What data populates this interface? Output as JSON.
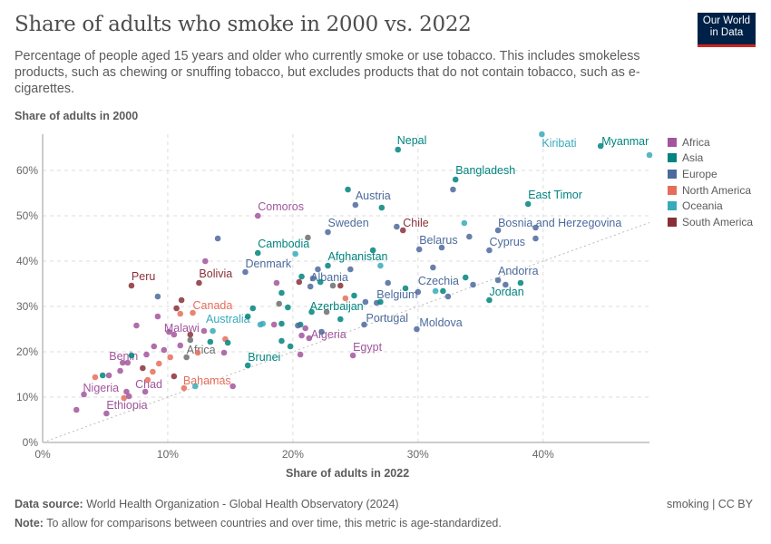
{
  "header": {
    "title": "Share of adults who smoke in 2000 vs. 2022",
    "subtitle": "Percentage of people aged 15 years and older who currently smoke or use tobacco. This includes smokeless products, such as chewing or snuffing tobacco, but excludes products that do not contain tobacco, such as e-cigarettes.",
    "logo": "Our World in Data"
  },
  "footer": {
    "source_label": "Data source:",
    "source": "World Health Organization - Global Health Observatory (2024)",
    "note_label": "Note:",
    "note": "To allow for comparisons between countries and over time, this metric is age-standardized.",
    "license": "smoking | CC BY"
  },
  "chart_data": {
    "type": "scatter",
    "title": "Share of adults who smoke in 2000 vs. 2022",
    "xlabel": "Share of adults in 2022",
    "ylabel": "Share of adults in 2000",
    "xlim": [
      0,
      48.5
    ],
    "ylim": [
      0,
      68
    ],
    "xticks": [
      "0%",
      "10%",
      "20%",
      "30%",
      "40%"
    ],
    "xtick_values": [
      0,
      10,
      20,
      30,
      40
    ],
    "yticks": [
      "0%",
      "10%",
      "20%",
      "30%",
      "40%",
      "50%",
      "60%"
    ],
    "ytick_values": [
      0,
      10,
      20,
      30,
      40,
      50,
      60
    ],
    "grid": true,
    "reference_line": "y = x (dotted)",
    "legend_placement": "right",
    "regions": [
      {
        "name": "Africa",
        "color": "#a2559c"
      },
      {
        "name": "Asia",
        "color": "#00847e"
      },
      {
        "name": "Europe",
        "color": "#4c6a9c"
      },
      {
        "name": "North America",
        "color": "#e56e5a"
      },
      {
        "name": "Oceania",
        "color": "#38aaba"
      },
      {
        "name": "South America",
        "color": "#883039"
      }
    ],
    "aggregate_color": "#6d6d6d",
    "points": [
      {
        "label": "Nepal",
        "region": "Asia",
        "x": 28.4,
        "y": 64.6
      },
      {
        "label": "Kiribati",
        "region": "Oceania",
        "x": 39.9,
        "y": 68
      },
      {
        "label": "Myanmar",
        "region": "Asia",
        "x": 44.6,
        "y": 65.4
      },
      {
        "label": "",
        "region": "Oceania",
        "x": 48.5,
        "y": 63.4
      },
      {
        "label": "Bangladesh",
        "region": "Asia",
        "x": 33.0,
        "y": 58
      },
      {
        "label": "East Timor",
        "region": "Asia",
        "x": 38.8,
        "y": 52.6
      },
      {
        "label": "Austria",
        "region": "Europe",
        "x": 25.0,
        "y": 52.4
      },
      {
        "label": "Comoros",
        "region": "Africa",
        "x": 17.2,
        "y": 50
      },
      {
        "label": "Sweden",
        "region": "Europe",
        "x": 22.8,
        "y": 46.4
      },
      {
        "label": "Chile",
        "region": "South America",
        "x": 28.8,
        "y": 46.8
      },
      {
        "label": "Bosnia and Herzegovina",
        "region": "Europe",
        "x": 36.4,
        "y": 46.8
      },
      {
        "label": "Cambodia",
        "region": "Asia",
        "x": 17.2,
        "y": 41.8
      },
      {
        "label": "Belarus",
        "region": "Europe",
        "x": 30.1,
        "y": 42.6
      },
      {
        "label": "Cyprus",
        "region": "Europe",
        "x": 35.7,
        "y": 42.4
      },
      {
        "label": "Afghanistan",
        "region": "Asia",
        "x": 22.8,
        "y": 39
      },
      {
        "label": "Denmark",
        "region": "Europe",
        "x": 16.2,
        "y": 37.6
      },
      {
        "label": "Albania",
        "region": "Europe",
        "x": 21.4,
        "y": 34.4
      },
      {
        "label": "Czechia",
        "region": "Europe",
        "x": 30.0,
        "y": 33.2
      },
      {
        "label": "Andorra",
        "region": "Europe",
        "x": 36.4,
        "y": 35.8
      },
      {
        "label": "Jordan",
        "region": "Asia",
        "x": 35.7,
        "y": 31.4
      },
      {
        "label": "Belgium",
        "region": "Europe",
        "x": 26.7,
        "y": 30.8
      },
      {
        "label": "Azerbaijan",
        "region": "Asia",
        "x": 21.5,
        "y": 28.8
      },
      {
        "label": "Portugal",
        "region": "Europe",
        "x": 25.7,
        "y": 26
      },
      {
        "label": "Moldova",
        "region": "Europe",
        "x": 29.9,
        "y": 25
      },
      {
        "label": "Algeria",
        "region": "Africa",
        "x": 21.3,
        "y": 23
      },
      {
        "label": "Egypt",
        "region": "Africa",
        "x": 24.8,
        "y": 19.2
      },
      {
        "label": "Brunei",
        "region": "Asia",
        "x": 16.4,
        "y": 17
      },
      {
        "label": "Peru",
        "region": "South America",
        "x": 7.1,
        "y": 34.6
      },
      {
        "label": "Bolivia",
        "region": "South America",
        "x": 12.5,
        "y": 35.2
      },
      {
        "label": "Canada",
        "region": "North America",
        "x": 12.0,
        "y": 28.6
      },
      {
        "label": "Malawi",
        "region": "Africa",
        "x": 10.5,
        "y": 23.8
      },
      {
        "label": "Australia",
        "region": "Oceania",
        "x": 17.4,
        "y": 26
      },
      {
        "label": "Africa",
        "region": "aggregate",
        "x": 11.5,
        "y": 18.8
      },
      {
        "label": "Benin",
        "region": "Africa",
        "x": 6.4,
        "y": 17.6
      },
      {
        "label": "Chad",
        "region": "Africa",
        "x": 8.2,
        "y": 11.2
      },
      {
        "label": "Bahamas",
        "region": "North America",
        "x": 11.3,
        "y": 12
      },
      {
        "label": "Nigeria",
        "region": "Africa",
        "x": 3.3,
        "y": 10.6
      },
      {
        "label": "Ethiopia",
        "region": "Africa",
        "x": 5.1,
        "y": 6.4
      },
      {
        "label": "",
        "region": "Asia",
        "x": 24.4,
        "y": 55.8
      },
      {
        "label": "",
        "region": "Asia",
        "x": 27.1,
        "y": 51.8
      },
      {
        "label": "",
        "region": "Europe",
        "x": 32.8,
        "y": 55.8
      },
      {
        "label": "",
        "region": "Europe",
        "x": 28.3,
        "y": 47.6
      },
      {
        "label": "",
        "region": "Oceania",
        "x": 33.7,
        "y": 48.4
      },
      {
        "label": "",
        "region": "Europe",
        "x": 39.4,
        "y": 47.4
      },
      {
        "label": "",
        "region": "Europe",
        "x": 39.4,
        "y": 45
      },
      {
        "label": "",
        "region": "Europe",
        "x": 34.1,
        "y": 45.4
      },
      {
        "label": "",
        "region": "Europe",
        "x": 31.9,
        "y": 43
      },
      {
        "label": "",
        "region": "aggregate",
        "x": 21.2,
        "y": 45.2
      },
      {
        "label": "",
        "region": "Europe",
        "x": 14.0,
        "y": 45
      },
      {
        "label": "",
        "region": "Africa",
        "x": 13.0,
        "y": 40
      },
      {
        "label": "",
        "region": "Asia",
        "x": 26.4,
        "y": 42.4
      },
      {
        "label": "",
        "region": "Oceania",
        "x": 27.0,
        "y": 39
      },
      {
        "label": "",
        "region": "Oceania",
        "x": 20.2,
        "y": 41.6
      },
      {
        "label": "",
        "region": "Europe",
        "x": 22.0,
        "y": 38.2
      },
      {
        "label": "",
        "region": "Europe",
        "x": 24.6,
        "y": 38.2
      },
      {
        "label": "",
        "region": "Asia",
        "x": 22.2,
        "y": 35.4
      },
      {
        "label": "",
        "region": "South America",
        "x": 20.5,
        "y": 35.4
      },
      {
        "label": "",
        "region": "Europe",
        "x": 21.6,
        "y": 36.2
      },
      {
        "label": "",
        "region": "aggregate",
        "x": 23.2,
        "y": 34.6
      },
      {
        "label": "",
        "region": "South America",
        "x": 23.8,
        "y": 34.6
      },
      {
        "label": "",
        "region": "Africa",
        "x": 18.7,
        "y": 35.2
      },
      {
        "label": "",
        "region": "Asia",
        "x": 19.1,
        "y": 33
      },
      {
        "label": "",
        "region": "Asia",
        "x": 20.7,
        "y": 36.6
      },
      {
        "label": "",
        "region": "Asia",
        "x": 33.8,
        "y": 36.4
      },
      {
        "label": "",
        "region": "Europe",
        "x": 34.4,
        "y": 34.8
      },
      {
        "label": "",
        "region": "Europe",
        "x": 37.0,
        "y": 34.8
      },
      {
        "label": "",
        "region": "Asia",
        "x": 38.2,
        "y": 35.2
      },
      {
        "label": "",
        "region": "Europe",
        "x": 31.2,
        "y": 38.6
      },
      {
        "label": "",
        "region": "Asia",
        "x": 29.0,
        "y": 34
      },
      {
        "label": "",
        "region": "Oceania",
        "x": 31.4,
        "y": 33.4
      },
      {
        "label": "",
        "region": "Asia",
        "x": 32.0,
        "y": 33.4
      },
      {
        "label": "",
        "region": "Europe",
        "x": 32.4,
        "y": 32.2
      },
      {
        "label": "",
        "region": "Europe",
        "x": 27.6,
        "y": 35.2
      },
      {
        "label": "",
        "region": "Europe",
        "x": 25.8,
        "y": 31
      },
      {
        "label": "",
        "region": "Asia",
        "x": 27.0,
        "y": 31
      },
      {
        "label": "",
        "region": "North America",
        "x": 24.2,
        "y": 31.8
      },
      {
        "label": "",
        "region": "Asia",
        "x": 24.9,
        "y": 32.4
      },
      {
        "label": "",
        "region": "aggregate",
        "x": 18.9,
        "y": 30.6
      },
      {
        "label": "",
        "region": "Asia",
        "x": 19.6,
        "y": 29.8
      },
      {
        "label": "",
        "region": "Asia",
        "x": 19.1,
        "y": 26.2
      },
      {
        "label": "",
        "region": "Asia",
        "x": 20.6,
        "y": 26
      },
      {
        "label": "",
        "region": "Oceania",
        "x": 17.6,
        "y": 26.2
      },
      {
        "label": "",
        "region": "Europe",
        "x": 20.4,
        "y": 25.8
      },
      {
        "label": "",
        "region": "aggregate",
        "x": 22.7,
        "y": 28.8
      },
      {
        "label": "",
        "region": "Asia",
        "x": 23.8,
        "y": 27.2
      },
      {
        "label": "",
        "region": "Europe",
        "x": 22.3,
        "y": 24.4
      },
      {
        "label": "",
        "region": "Africa",
        "x": 21.0,
        "y": 25.2
      },
      {
        "label": "",
        "region": "Africa",
        "x": 20.7,
        "y": 23.6
      },
      {
        "label": "",
        "region": "Asia",
        "x": 19.1,
        "y": 22.4
      },
      {
        "label": "",
        "region": "Asia",
        "x": 19.8,
        "y": 21.2
      },
      {
        "label": "",
        "region": "Asia",
        "x": 16.4,
        "y": 27.8
      },
      {
        "label": "",
        "region": "Asia",
        "x": 16.8,
        "y": 29.6
      },
      {
        "label": "",
        "region": "Africa",
        "x": 18.5,
        "y": 26
      },
      {
        "label": "",
        "region": "Africa",
        "x": 7.5,
        "y": 25.8
      },
      {
        "label": "",
        "region": "Europe",
        "x": 9.2,
        "y": 32.2
      },
      {
        "label": "",
        "region": "Africa",
        "x": 9.2,
        "y": 27.8
      },
      {
        "label": "",
        "region": "South America",
        "x": 11.1,
        "y": 31.4
      },
      {
        "label": "",
        "region": "South America",
        "x": 10.7,
        "y": 29.6
      },
      {
        "label": "",
        "region": "North America",
        "x": 11.0,
        "y": 28.4
      },
      {
        "label": "",
        "region": "Africa",
        "x": 10.1,
        "y": 24.4
      },
      {
        "label": "",
        "region": "Africa",
        "x": 12.9,
        "y": 24.6
      },
      {
        "label": "",
        "region": "Oceania",
        "x": 13.6,
        "y": 24.6
      },
      {
        "label": "",
        "region": "South America",
        "x": 11.8,
        "y": 23.8
      },
      {
        "label": "",
        "region": "Asia",
        "x": 13.4,
        "y": 22.2
      },
      {
        "label": "",
        "region": "North America",
        "x": 14.6,
        "y": 22.8
      },
      {
        "label": "",
        "region": "Asia",
        "x": 14.8,
        "y": 22
      },
      {
        "label": "",
        "region": "Africa",
        "x": 14.5,
        "y": 19.8
      },
      {
        "label": "",
        "region": "Africa",
        "x": 8.9,
        "y": 21.2
      },
      {
        "label": "",
        "region": "Africa",
        "x": 9.7,
        "y": 20.4
      },
      {
        "label": "",
        "region": "Africa",
        "x": 11.0,
        "y": 21.4
      },
      {
        "label": "",
        "region": "aggregate",
        "x": 11.8,
        "y": 22.6
      },
      {
        "label": "",
        "region": "Africa",
        "x": 8.3,
        "y": 19.4
      },
      {
        "label": "",
        "region": "Asia",
        "x": 7.1,
        "y": 19.2
      },
      {
        "label": "",
        "region": "Africa",
        "x": 6.8,
        "y": 17.6
      },
      {
        "label": "",
        "region": "North America",
        "x": 9.3,
        "y": 17.4
      },
      {
        "label": "",
        "region": "North America",
        "x": 10.2,
        "y": 18.8
      },
      {
        "label": "",
        "region": "North America",
        "x": 8.8,
        "y": 15.6
      },
      {
        "label": "",
        "region": "South America",
        "x": 8.0,
        "y": 16.4
      },
      {
        "label": "",
        "region": "Africa",
        "x": 6.2,
        "y": 15.8
      },
      {
        "label": "",
        "region": "Africa",
        "x": 5.3,
        "y": 14.8
      },
      {
        "label": "",
        "region": "North America",
        "x": 8.4,
        "y": 13.8
      },
      {
        "label": "",
        "region": "South America",
        "x": 10.5,
        "y": 14.6
      },
      {
        "label": "",
        "region": "North America",
        "x": 12.4,
        "y": 19.8
      },
      {
        "label": "",
        "region": "North America",
        "x": 4.2,
        "y": 14.4
      },
      {
        "label": "",
        "region": "Asia",
        "x": 4.8,
        "y": 14.8
      },
      {
        "label": "",
        "region": "Africa",
        "x": 15.2,
        "y": 12.4
      },
      {
        "label": "",
        "region": "Oceania",
        "x": 12.2,
        "y": 12.4
      },
      {
        "label": "",
        "region": "Africa",
        "x": 6.7,
        "y": 11.2
      },
      {
        "label": "",
        "region": "North America",
        "x": 6.5,
        "y": 9.8
      },
      {
        "label": "",
        "region": "Africa",
        "x": 6.9,
        "y": 10.2
      },
      {
        "label": "",
        "region": "Africa",
        "x": 2.7,
        "y": 7.2
      },
      {
        "label": "",
        "region": "Africa",
        "x": 20.6,
        "y": 19.4
      }
    ]
  }
}
